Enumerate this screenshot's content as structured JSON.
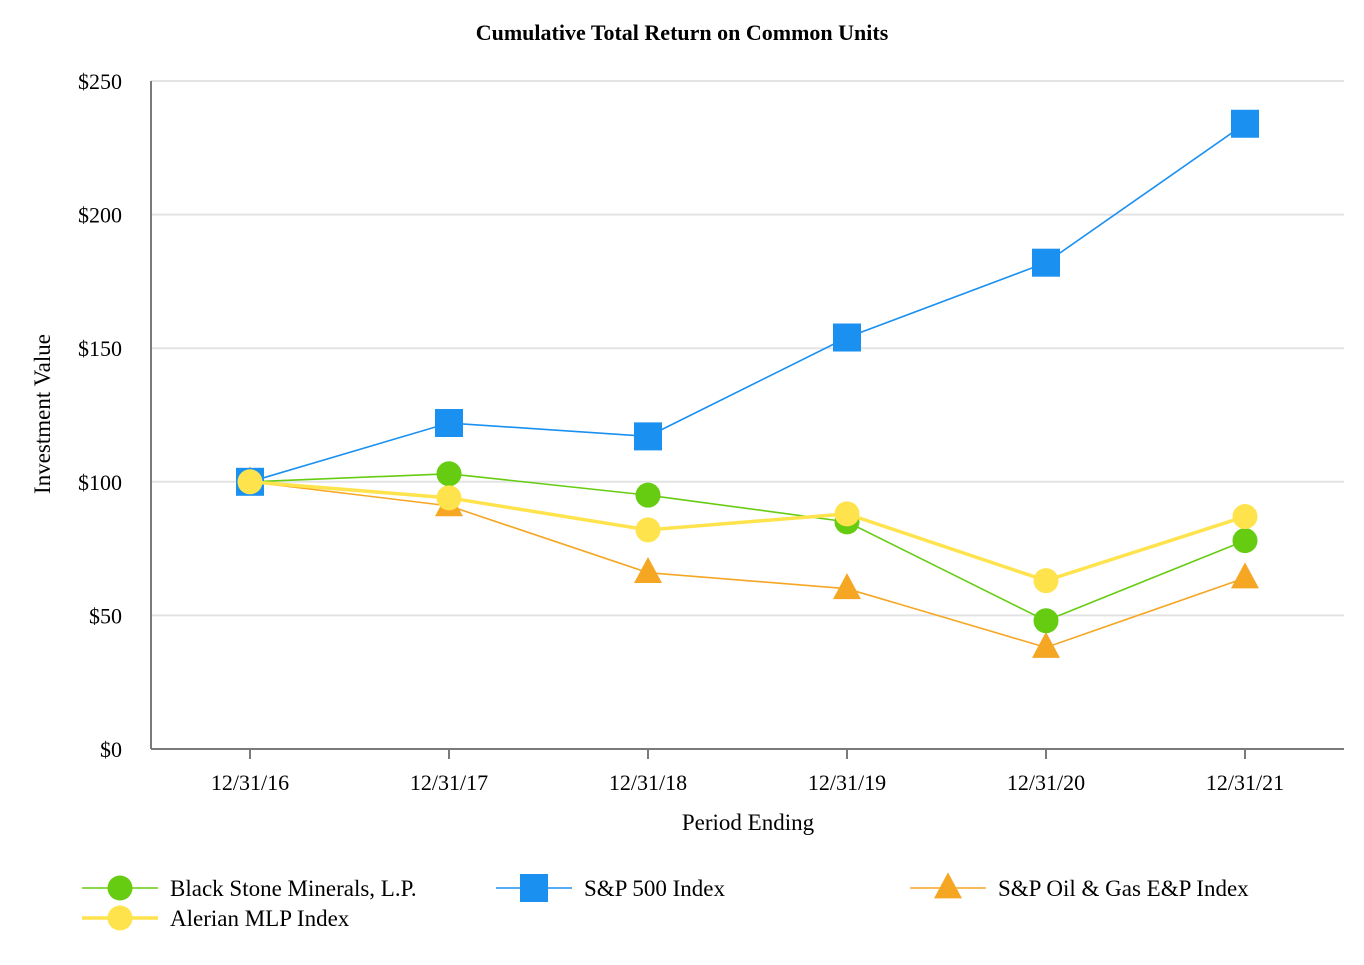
{
  "chart_data": {
    "type": "line",
    "title": "Cumulative Total Return on Common Units",
    "xlabel": "Period Ending",
    "ylabel": "Investment Value",
    "categories": [
      "12/31/16",
      "12/31/17",
      "12/31/18",
      "12/31/19",
      "12/31/20",
      "12/31/21"
    ],
    "ylim": [
      0,
      250
    ],
    "yticks": [
      0,
      50,
      100,
      150,
      200,
      250
    ],
    "ytick_labels": [
      "$0",
      "$50",
      "$100",
      "$150",
      "$200",
      "$250"
    ],
    "grid": true,
    "legend_position": "bottom",
    "series": [
      {
        "name": "Black Stone Minerals, L.P.",
        "marker": "circle",
        "color": "#66cc11",
        "values": [
          100,
          103,
          95,
          85,
          48,
          78
        ]
      },
      {
        "name": "S&P 500 Index",
        "marker": "square",
        "color": "#1a90f0",
        "values": [
          100,
          122,
          117,
          154,
          182,
          234
        ]
      },
      {
        "name": "S&P Oil & Gas E&P Index",
        "marker": "triangle",
        "color": "#f5a623",
        "values": [
          100,
          91,
          66,
          60,
          38,
          64
        ]
      },
      {
        "name": "Alerian MLP Index",
        "marker": "circle",
        "color": "#ffe34d",
        "values": [
          100,
          94,
          82,
          88,
          63,
          87
        ]
      }
    ]
  }
}
